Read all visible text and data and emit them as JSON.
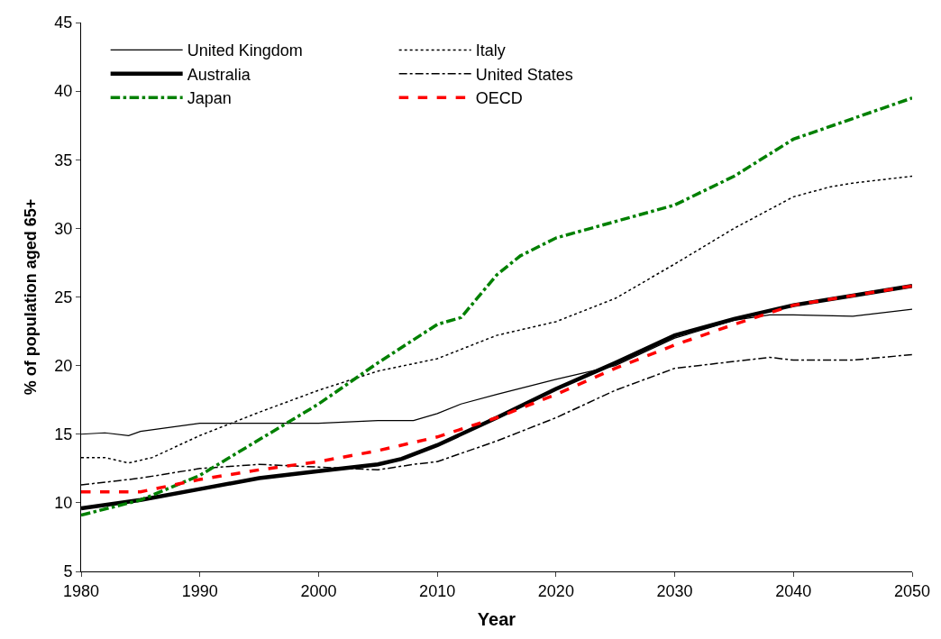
{
  "chart_data": {
    "type": "line",
    "xlabel": "Year",
    "ylabel": "% of population aged 65+",
    "xlim": [
      1980,
      2050
    ],
    "xticks": [
      1980,
      1990,
      2000,
      2010,
      2020,
      2030,
      2040,
      2050
    ],
    "ylim": [
      5,
      45
    ],
    "yticks": [
      5,
      10,
      15,
      20,
      25,
      30,
      35,
      40,
      45
    ],
    "legend": "top left",
    "marker": "none",
    "series": [
      {
        "name": "United Kingdom",
        "color": "#000000",
        "line_style": "solid",
        "x": [
          1980,
          1982,
          1984,
          1985,
          1990,
          1995,
          2000,
          2005,
          2008,
          2010,
          2012,
          2015,
          2020,
          2025,
          2030,
          2035,
          2038,
          2040,
          2045,
          2050
        ],
        "values": [
          15.0,
          15.1,
          14.9,
          15.2,
          15.8,
          15.8,
          15.8,
          16.0,
          16.0,
          16.5,
          17.2,
          17.9,
          19.0,
          20.0,
          22.0,
          23.3,
          23.7,
          23.7,
          23.6,
          24.1
        ]
      },
      {
        "name": "Italy",
        "color": "#000000",
        "line_style": "dotted",
        "x": [
          1980,
          1982,
          1984,
          1986,
          1990,
          1995,
          2000,
          2005,
          2010,
          2015,
          2020,
          2025,
          2030,
          2035,
          2040,
          2043,
          2045,
          2050
        ],
        "values": [
          13.3,
          13.3,
          12.9,
          13.3,
          14.9,
          16.6,
          18.2,
          19.6,
          20.5,
          22.2,
          23.2,
          24.9,
          27.4,
          30.0,
          32.3,
          33.0,
          33.3,
          33.8
        ]
      },
      {
        "name": "Australia",
        "color": "#000000",
        "line_style": "solid",
        "x": [
          1980,
          1985,
          1990,
          1995,
          2000,
          2005,
          2007,
          2010,
          2015,
          2020,
          2025,
          2030,
          2035,
          2040,
          2045,
          2050
        ],
        "values": [
          9.6,
          10.2,
          11.0,
          11.8,
          12.3,
          12.8,
          13.2,
          14.2,
          16.2,
          18.3,
          20.2,
          22.2,
          23.4,
          24.4,
          25.1,
          25.8
        ]
      },
      {
        "name": "United States",
        "color": "#000000",
        "line_style": "dashdot",
        "x": [
          1980,
          1985,
          1990,
          1995,
          2000,
          2005,
          2008,
          2010,
          2015,
          2020,
          2025,
          2030,
          2035,
          2038,
          2040,
          2045,
          2050
        ],
        "values": [
          11.3,
          11.8,
          12.5,
          12.8,
          12.6,
          12.4,
          12.8,
          13.0,
          14.5,
          16.2,
          18.2,
          19.8,
          20.3,
          20.6,
          20.4,
          20.4,
          20.8
        ]
      },
      {
        "name": "Japan",
        "color": "#008000",
        "line_style": "dashdot",
        "x": [
          1980,
          1985,
          1990,
          1995,
          2000,
          2005,
          2010,
          2012,
          2015,
          2017,
          2020,
          2025,
          2030,
          2035,
          2040,
          2045,
          2050
        ],
        "values": [
          9.1,
          10.2,
          12.0,
          14.6,
          17.2,
          20.2,
          23.0,
          23.5,
          26.6,
          28.0,
          29.3,
          30.5,
          31.7,
          33.8,
          36.5,
          38.0,
          39.5
        ]
      },
      {
        "name": "OECD",
        "color": "#ff0000",
        "line_style": "dashed",
        "x": [
          1980,
          1985,
          1990,
          1995,
          2000,
          2005,
          2010,
          2015,
          2020,
          2025,
          2030,
          2035,
          2040,
          2045,
          2050
        ],
        "values": [
          10.8,
          10.8,
          11.7,
          12.4,
          13.0,
          13.8,
          14.8,
          16.2,
          17.9,
          19.8,
          21.5,
          23.0,
          24.4,
          25.1,
          25.8
        ]
      }
    ]
  }
}
